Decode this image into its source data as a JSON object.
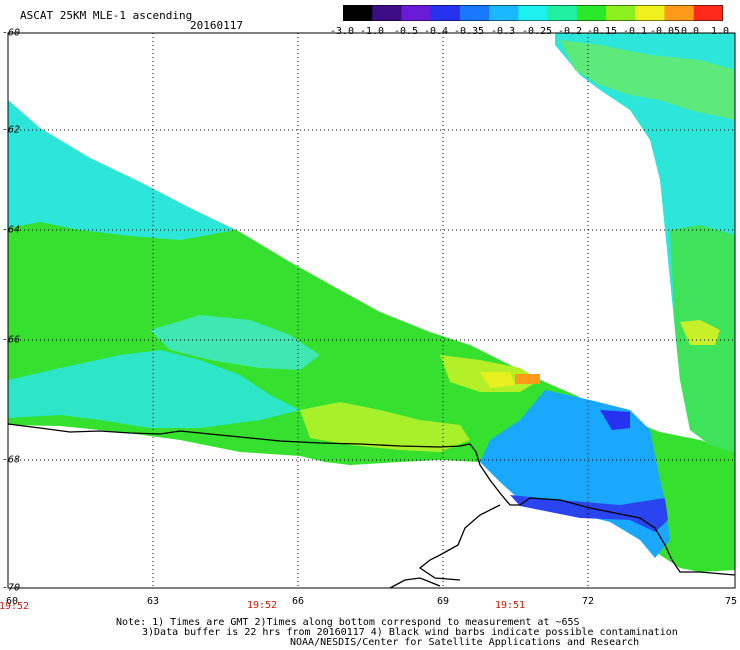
{
  "header": {
    "title": "ASCAT 25KM MLE-1 ascending",
    "date": "20160117"
  },
  "colorbar": {
    "labels": [
      "-3.0",
      "-1.0",
      "-0.5",
      "-0.4",
      "-0.35",
      "-0.3",
      "-0.25",
      "-0.2",
      "-0.15",
      "-0.1",
      "-0.05",
      "0.0",
      "1.0"
    ],
    "colors": [
      "#000000",
      "#3c0d84",
      "#6a1bd8",
      "#2632f0",
      "#1a78ff",
      "#1ab8ff",
      "#1ef0f0",
      "#1ef0a0",
      "#2ae82a",
      "#8cf01e",
      "#f0f01e",
      "#ff9a1a",
      "#ff2a1a"
    ]
  },
  "axes": {
    "x_ticks": [
      "60",
      "63",
      "66",
      "69",
      "72",
      "75"
    ],
    "y_ticks": [
      "-60",
      "-62",
      "-64",
      "-66",
      "-68",
      "-70"
    ],
    "xlim": [
      60,
      75
    ],
    "ylim": [
      -70,
      -60
    ]
  },
  "times": [
    "19:52",
    "19:52",
    "19:51"
  ],
  "notes": {
    "line1": "Note: 1) Times are GMT 2)Times along bottom correspond to measurement at ~65S",
    "line2": "3)Data buffer is 22 hrs from 20160117 4) Black wind barbs indicate possible contamination",
    "line3": "NOAA/NESDIS/Center for Satellite Applications and Research"
  }
}
